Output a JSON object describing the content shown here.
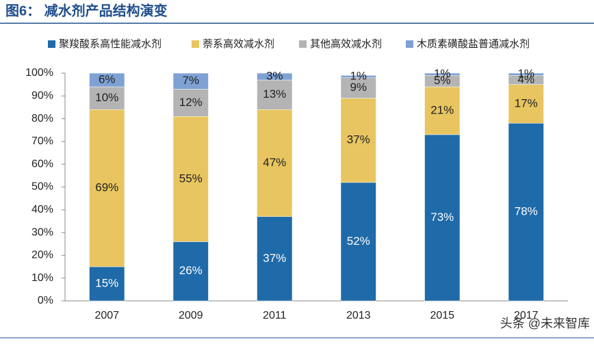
{
  "chart_data": {
    "type": "stacked_bar",
    "title": "图6： 减水剂产品结构演变",
    "watermark": "头条 @未来智库",
    "categories": [
      "2007",
      "2009",
      "2011",
      "2013",
      "2015",
      "2017"
    ],
    "series": [
      {
        "name": "聚羧酸系高性能减水剂",
        "color": "#1f6aa8",
        "values": [
          15,
          26,
          37,
          52,
          73,
          78
        ],
        "value_labels": [
          "15%",
          "26%",
          "37%",
          "52%",
          "73%",
          "78%"
        ]
      },
      {
        "name": "萘系高效减水剂",
        "color": "#e8c560",
        "values": [
          69,
          55,
          47,
          37,
          21,
          17
        ],
        "value_labels": [
          "69%",
          "55%",
          "47%",
          "37%",
          "21%",
          "17%"
        ]
      },
      {
        "name": "其他高效减水剂",
        "color": "#b4b4b4",
        "values": [
          10,
          12,
          13,
          9,
          5,
          4
        ],
        "value_labels": [
          "10%",
          "12%",
          "13%",
          "9%",
          "5%",
          "4%"
        ]
      },
      {
        "name": "木质素磺酸盐普通减水剂",
        "color": "#7fa2d4",
        "values": [
          6,
          7,
          3,
          1,
          1,
          1
        ],
        "value_labels": [
          "6%",
          "7%",
          "3%",
          "1%",
          "1%",
          "1%"
        ]
      }
    ],
    "ylim": [
      0,
      100
    ],
    "yticks": [
      {
        "value": 0,
        "label": "0%"
      },
      {
        "value": 10,
        "label": "10%"
      },
      {
        "value": 20,
        "label": "20%"
      },
      {
        "value": 30,
        "label": "30%"
      },
      {
        "value": 40,
        "label": "40%"
      },
      {
        "value": 50,
        "label": "50%"
      },
      {
        "value": 60,
        "label": "60%"
      },
      {
        "value": 70,
        "label": "70%"
      },
      {
        "value": 80,
        "label": "80%"
      },
      {
        "value": 90,
        "label": "90%"
      },
      {
        "value": 100,
        "label": "100%"
      }
    ],
    "legend": "top"
  }
}
